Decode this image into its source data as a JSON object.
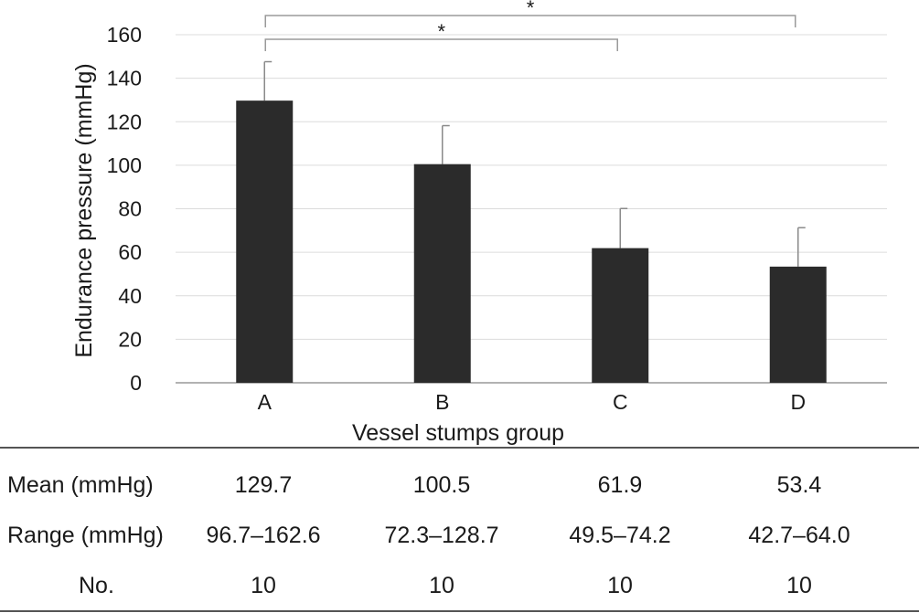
{
  "chart_data": {
    "type": "bar",
    "categories": [
      "A",
      "B",
      "C",
      "D"
    ],
    "values": [
      129.7,
      100.5,
      61.9,
      53.4
    ],
    "error_upper": [
      147.6,
      118.2,
      80.1,
      71.3
    ],
    "xlabel": "Vessel stumps group",
    "ylabel": "Endurance pressure (mmHg)",
    "ylim": [
      0,
      160
    ],
    "yticks": [
      0,
      20,
      40,
      60,
      80,
      100,
      120,
      140,
      160
    ],
    "grid": true,
    "bar_color": "#2b2b2b",
    "significance": [
      {
        "from": "A",
        "to": "D",
        "label": "*"
      },
      {
        "from": "A",
        "to": "C",
        "label": "*"
      }
    ]
  },
  "table": {
    "columns": [
      "A",
      "B",
      "C",
      "D"
    ],
    "rows": [
      {
        "label": "Mean (mmHg)",
        "values": [
          "129.7",
          "100.5",
          "61.9",
          "53.4"
        ]
      },
      {
        "label": "Range (mmHg)",
        "values": [
          "96.7–162.6",
          "72.3–128.7",
          "49.5–74.2",
          "42.7–64.0"
        ]
      },
      {
        "label": "No.",
        "values": [
          "10",
          "10",
          "10",
          "10"
        ]
      }
    ]
  }
}
